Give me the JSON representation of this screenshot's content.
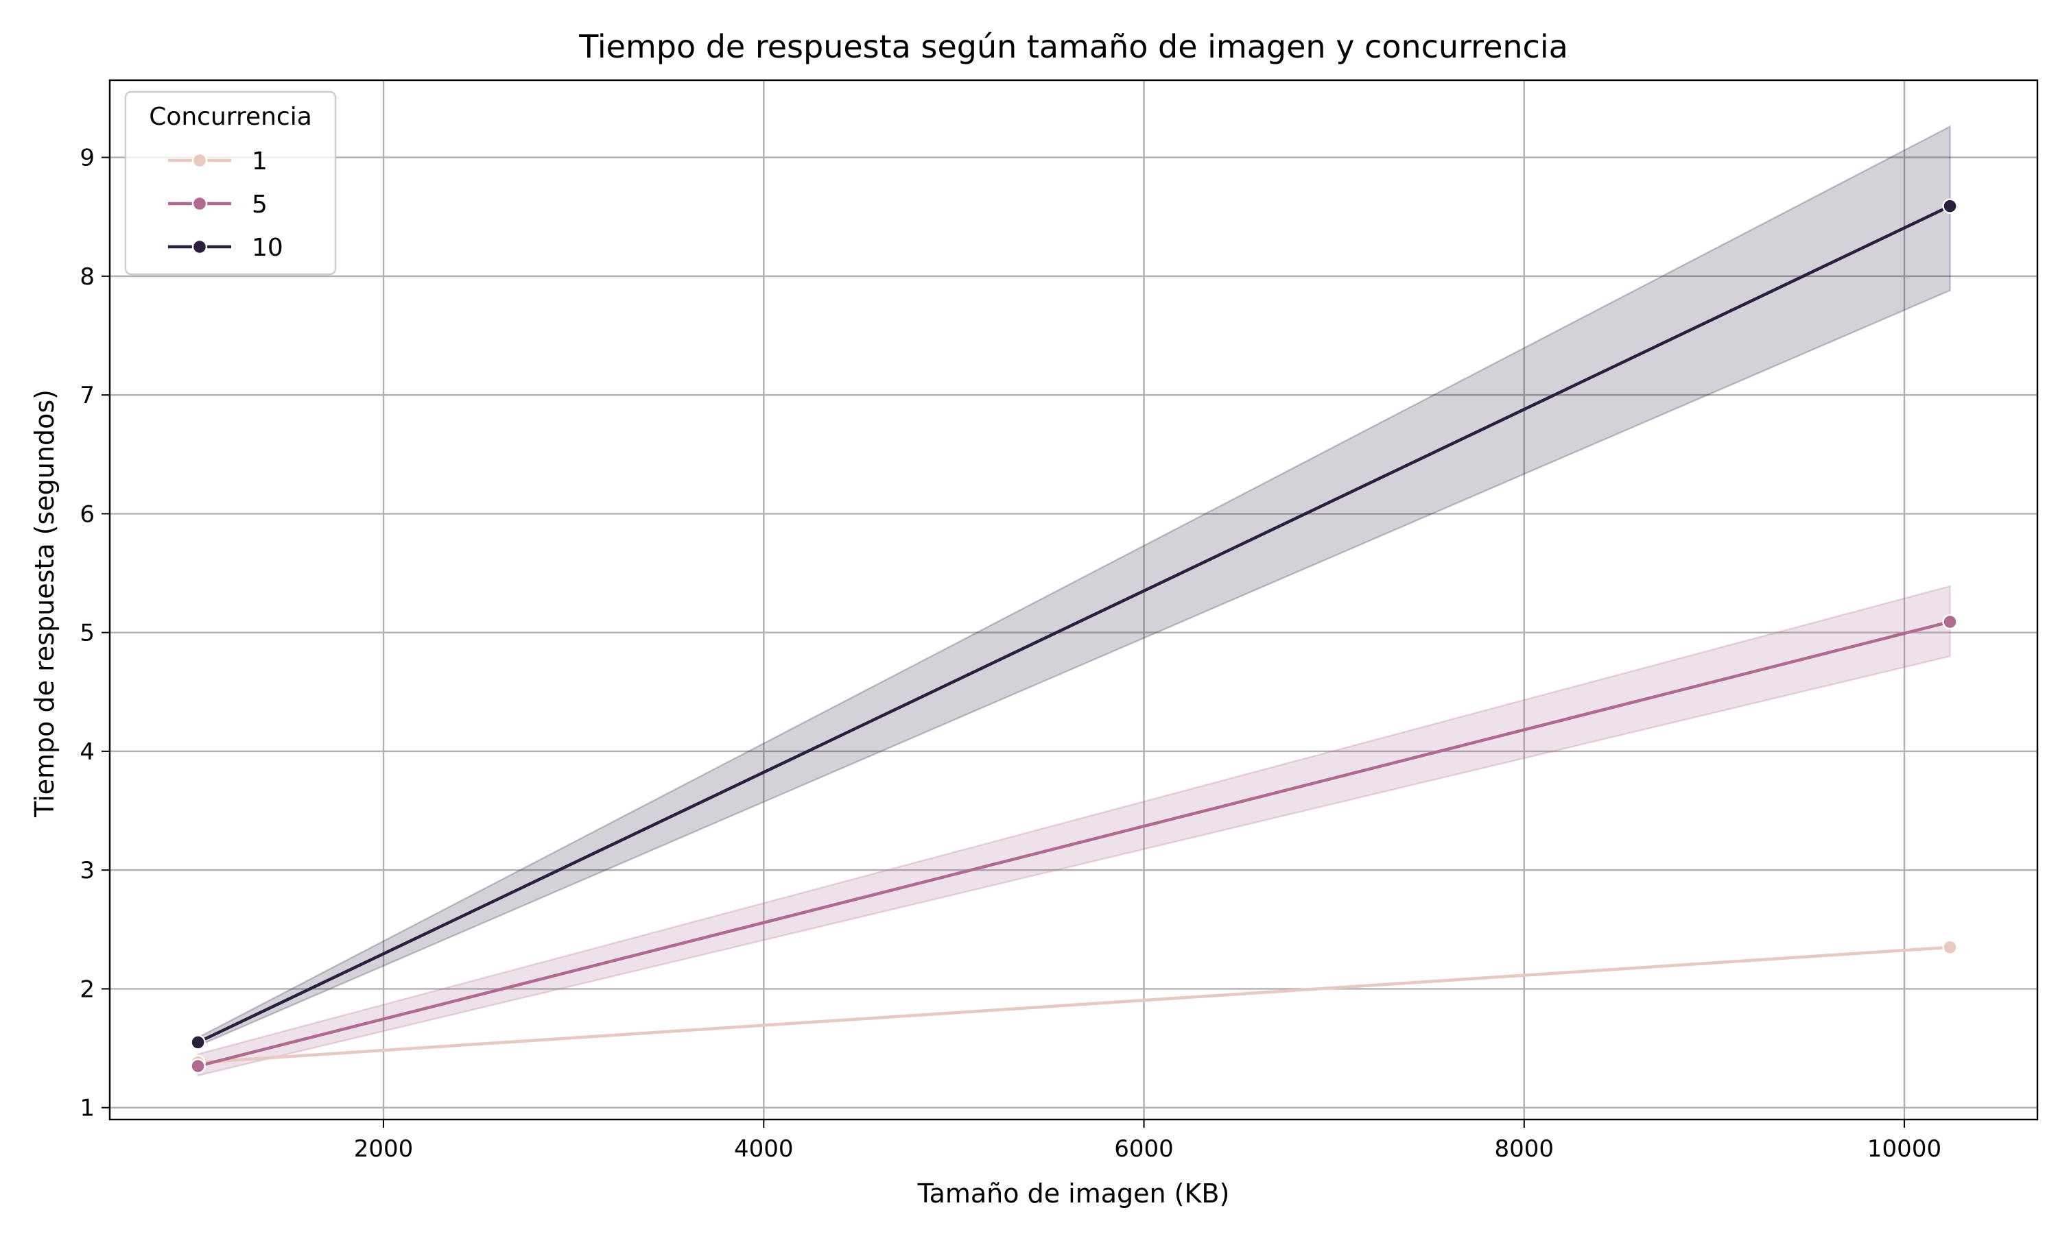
{
  "chart_data": {
    "type": "line",
    "title": "Tiempo de respuesta según tamaño de imagen y concurrencia",
    "xlabel": "Tamaño de imagen (KB)",
    "ylabel": "Tiempo de respuesta (segundos)",
    "xlim": [
      560,
      10700
    ],
    "ylim": [
      0.9,
      9.65
    ],
    "xticks": [
      2000,
      4000,
      6000,
      8000,
      10000
    ],
    "yticks": [
      1,
      2,
      3,
      4,
      5,
      6,
      7,
      8,
      9
    ],
    "grid": true,
    "legend": {
      "title": "Concurrencia",
      "position": "top-left"
    },
    "x": [
      1024,
      10240
    ],
    "series": [
      {
        "name": "1",
        "values": [
          1.38,
          2.35
        ],
        "ci_low": [
          1.38,
          2.35
        ],
        "ci_high": [
          1.38,
          2.35
        ],
        "color": "#e8c9c2"
      },
      {
        "name": "5",
        "values": [
          1.35,
          5.09
        ],
        "ci_low": [
          1.27,
          4.8
        ],
        "ci_high": [
          1.45,
          5.39
        ],
        "color": "#b0698f"
      },
      {
        "name": "10",
        "values": [
          1.55,
          8.59
        ],
        "ci_low": [
          1.52,
          7.88
        ],
        "ci_high": [
          1.59,
          9.26
        ],
        "color": "#2a1f3d"
      }
    ]
  }
}
